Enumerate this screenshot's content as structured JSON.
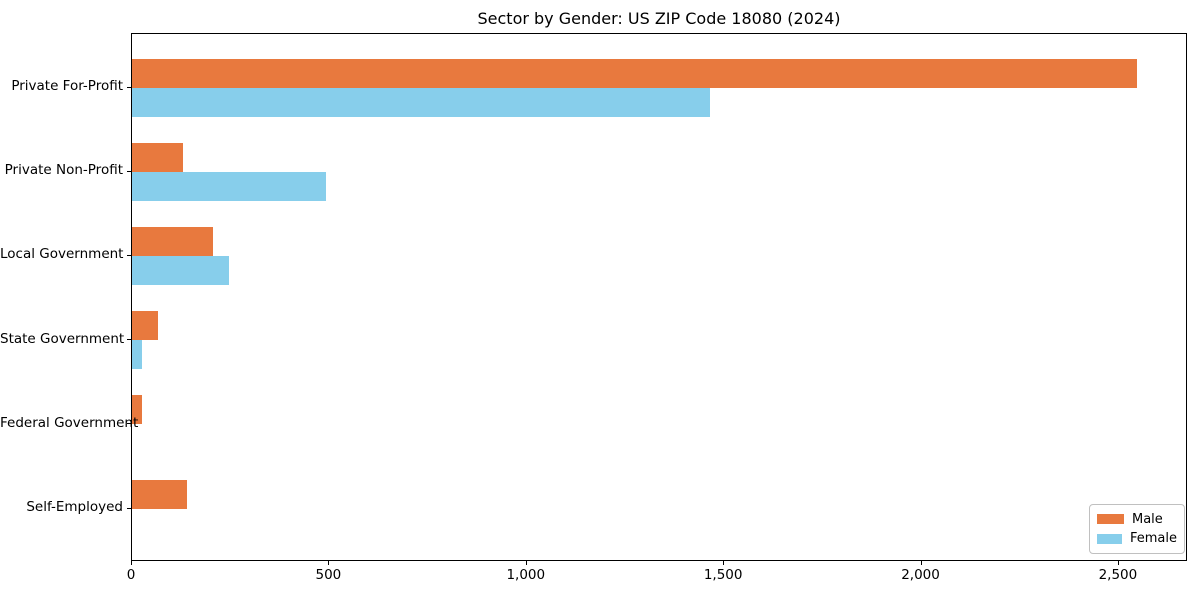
{
  "chart_data": {
    "type": "bar",
    "orientation": "horizontal",
    "title": "Sector by Gender: US ZIP Code 18080 (2024)",
    "xlabel": "",
    "ylabel": "",
    "categories": [
      "Private For-Profit",
      "Private Non-Profit",
      "Local Government",
      "State Government",
      "Federal Government",
      "Self-Employed"
    ],
    "series": [
      {
        "name": "Male",
        "color": "#e8793e",
        "values": [
          2545,
          130,
          205,
          65,
          25,
          140
        ]
      },
      {
        "name": "Female",
        "color": "#87ceeb",
        "values": [
          1463,
          492,
          246,
          25,
          0,
          0
        ]
      }
    ],
    "xlim": [
      0,
      2675
    ],
    "x_ticks": [
      0,
      500,
      1000,
      1500,
      2000,
      2500
    ],
    "x_tick_labels": [
      "0",
      "500",
      "1,000",
      "1,500",
      "2,000",
      "2,500"
    ],
    "grid": false,
    "legend_position": "lower right",
    "plot_background": "#ffffff",
    "spine_color": "#000000"
  }
}
